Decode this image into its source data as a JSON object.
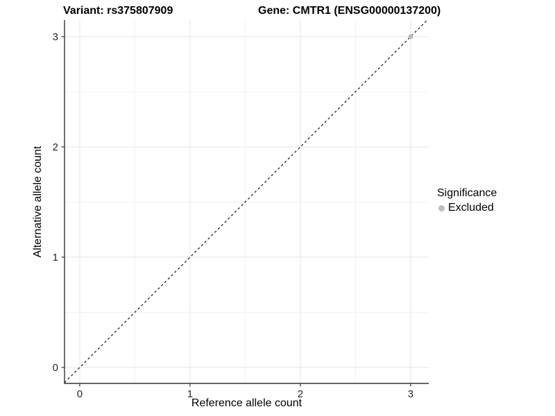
{
  "titles": {
    "variant": "Variant: rs375807909",
    "gene": "Gene: CMTR1 (ENSG00000137200)"
  },
  "axes": {
    "x_label": "Reference allele count",
    "y_label": "Alternative allele count"
  },
  "legend": {
    "title": "Significance",
    "items": [
      {
        "label": "Excluded",
        "color": "#bdbdbd"
      }
    ]
  },
  "chart_data": {
    "type": "scatter",
    "title": "Variant: rs375807909 / Gene: CMTR1 (ENSG00000137200)",
    "xlabel": "Reference allele count",
    "ylabel": "Alternative allele count",
    "xlim": [
      -0.138,
      3.164
    ],
    "ylim": [
      -0.145,
      3.15
    ],
    "x_ticks": [
      0,
      1,
      2,
      3
    ],
    "y_ticks": [
      0,
      1,
      2,
      3
    ],
    "x_minor_ticks": [
      0.5,
      1.5,
      2.5
    ],
    "y_minor_ticks": [
      0.5,
      1.5,
      2.5
    ],
    "grid": true,
    "legend_position": "right",
    "points": [
      {
        "x": 3,
        "y": 3,
        "series": "Excluded",
        "color": "#bdbdbd"
      }
    ],
    "reference_line": {
      "kind": "identity",
      "equation": "y = x",
      "style": "dashed",
      "color": "#000000"
    },
    "style": {
      "grid_major_color": "#e4e4e4",
      "grid_minor_color": "#f1f1f1",
      "axis_line_color": "#333333",
      "tick_color": "#333333",
      "tick_label_color": "#262626",
      "background": "#ffffff"
    }
  }
}
